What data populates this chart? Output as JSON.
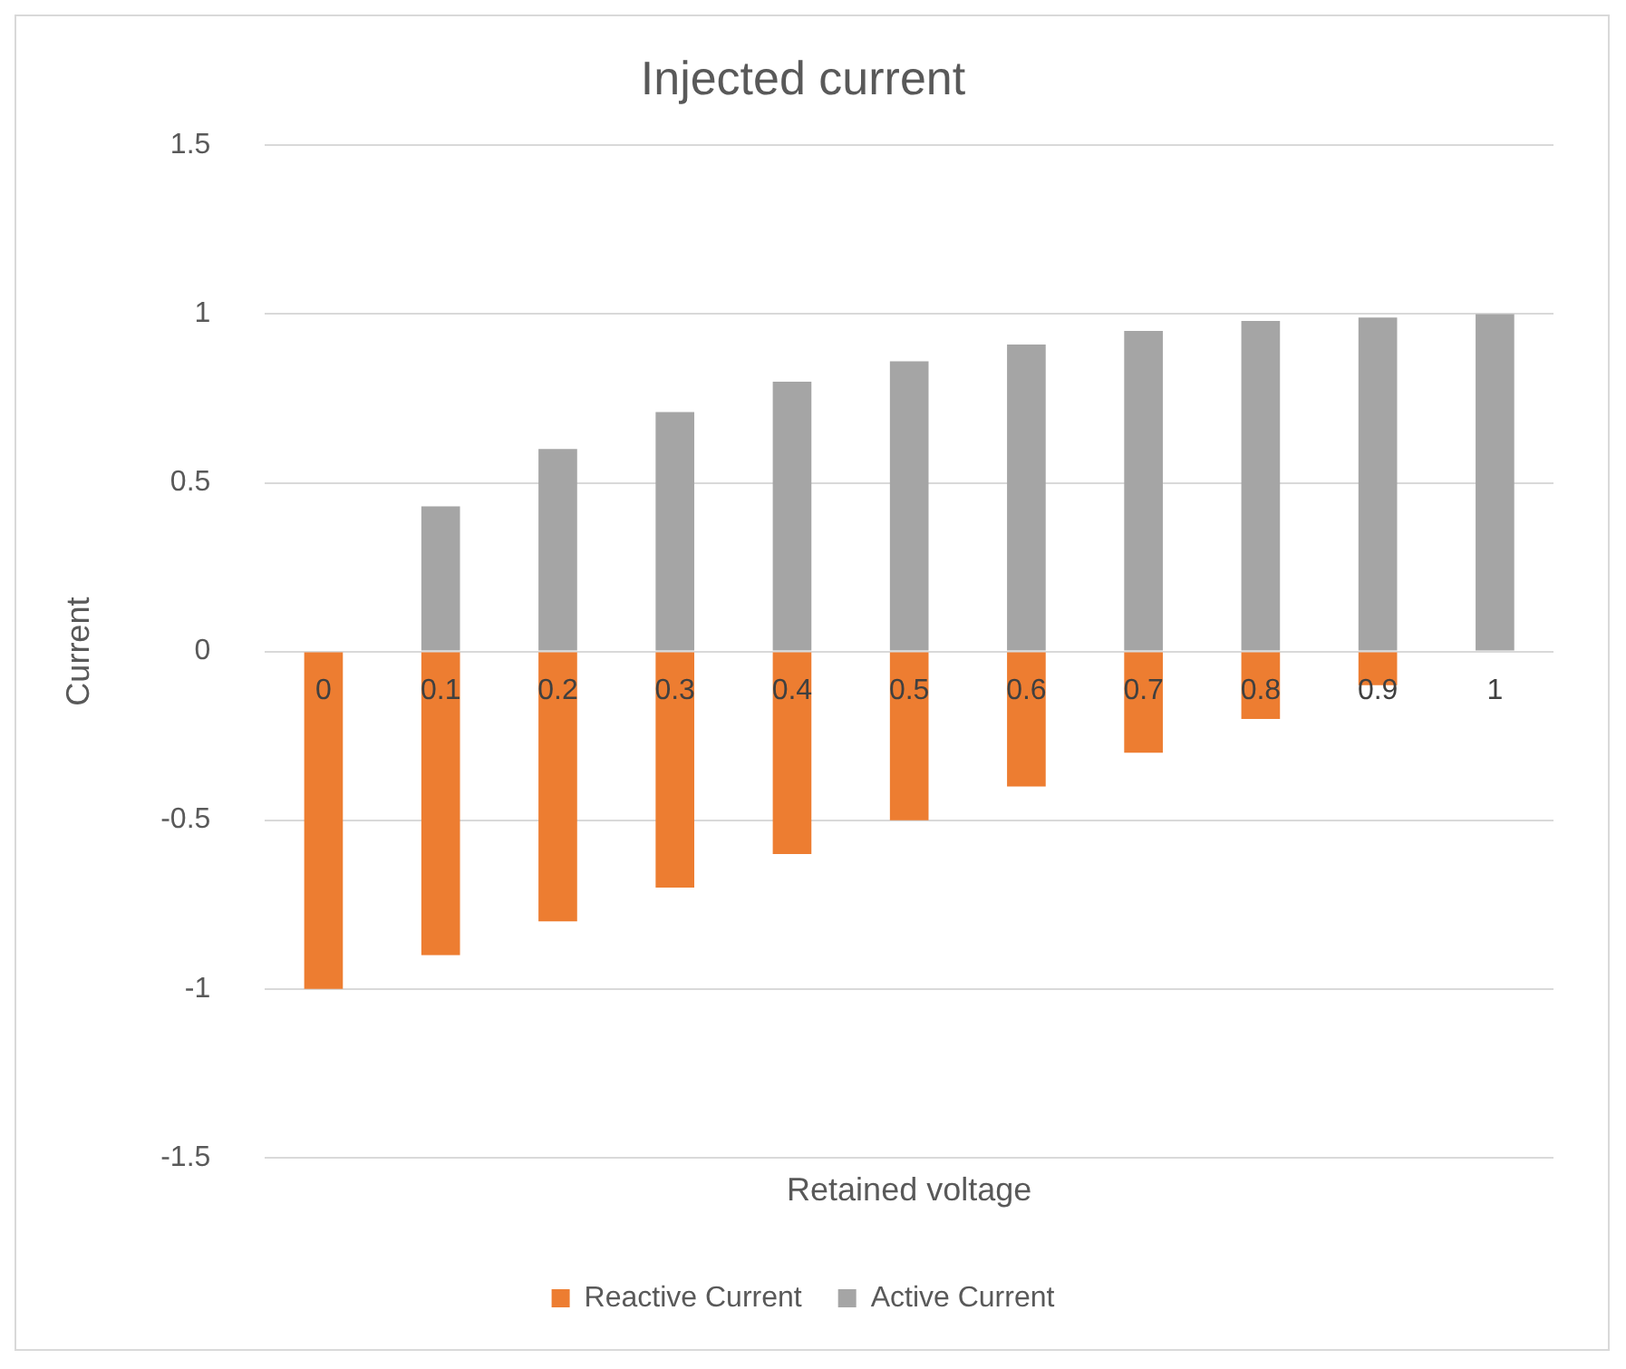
{
  "chart_data": {
    "type": "bar",
    "title": "Injected current",
    "xlabel": "Retained voltage",
    "ylabel": "Current",
    "categories": [
      "0",
      "0.1",
      "0.2",
      "0.3",
      "0.4",
      "0.5",
      "0.6",
      "0.7",
      "0.8",
      "0.9",
      "1"
    ],
    "series": [
      {
        "name": "Reactive Current",
        "color": "#ed7d31",
        "values": [
          -1,
          -0.9,
          -0.8,
          -0.7,
          -0.6,
          -0.5,
          -0.4,
          -0.3,
          -0.2,
          -0.1,
          0
        ]
      },
      {
        "name": "Active Current",
        "color": "#a5a5a5",
        "values": [
          0,
          0.43,
          0.6,
          0.71,
          0.8,
          0.86,
          0.91,
          0.95,
          0.98,
          0.99,
          1
        ]
      }
    ],
    "ylim": [
      -1.5,
      1.5
    ],
    "yticks": [
      -1.5,
      -1,
      -0.5,
      0,
      0.5,
      1,
      1.5
    ],
    "grid": "y",
    "legend": "bottom",
    "stacked": true
  }
}
